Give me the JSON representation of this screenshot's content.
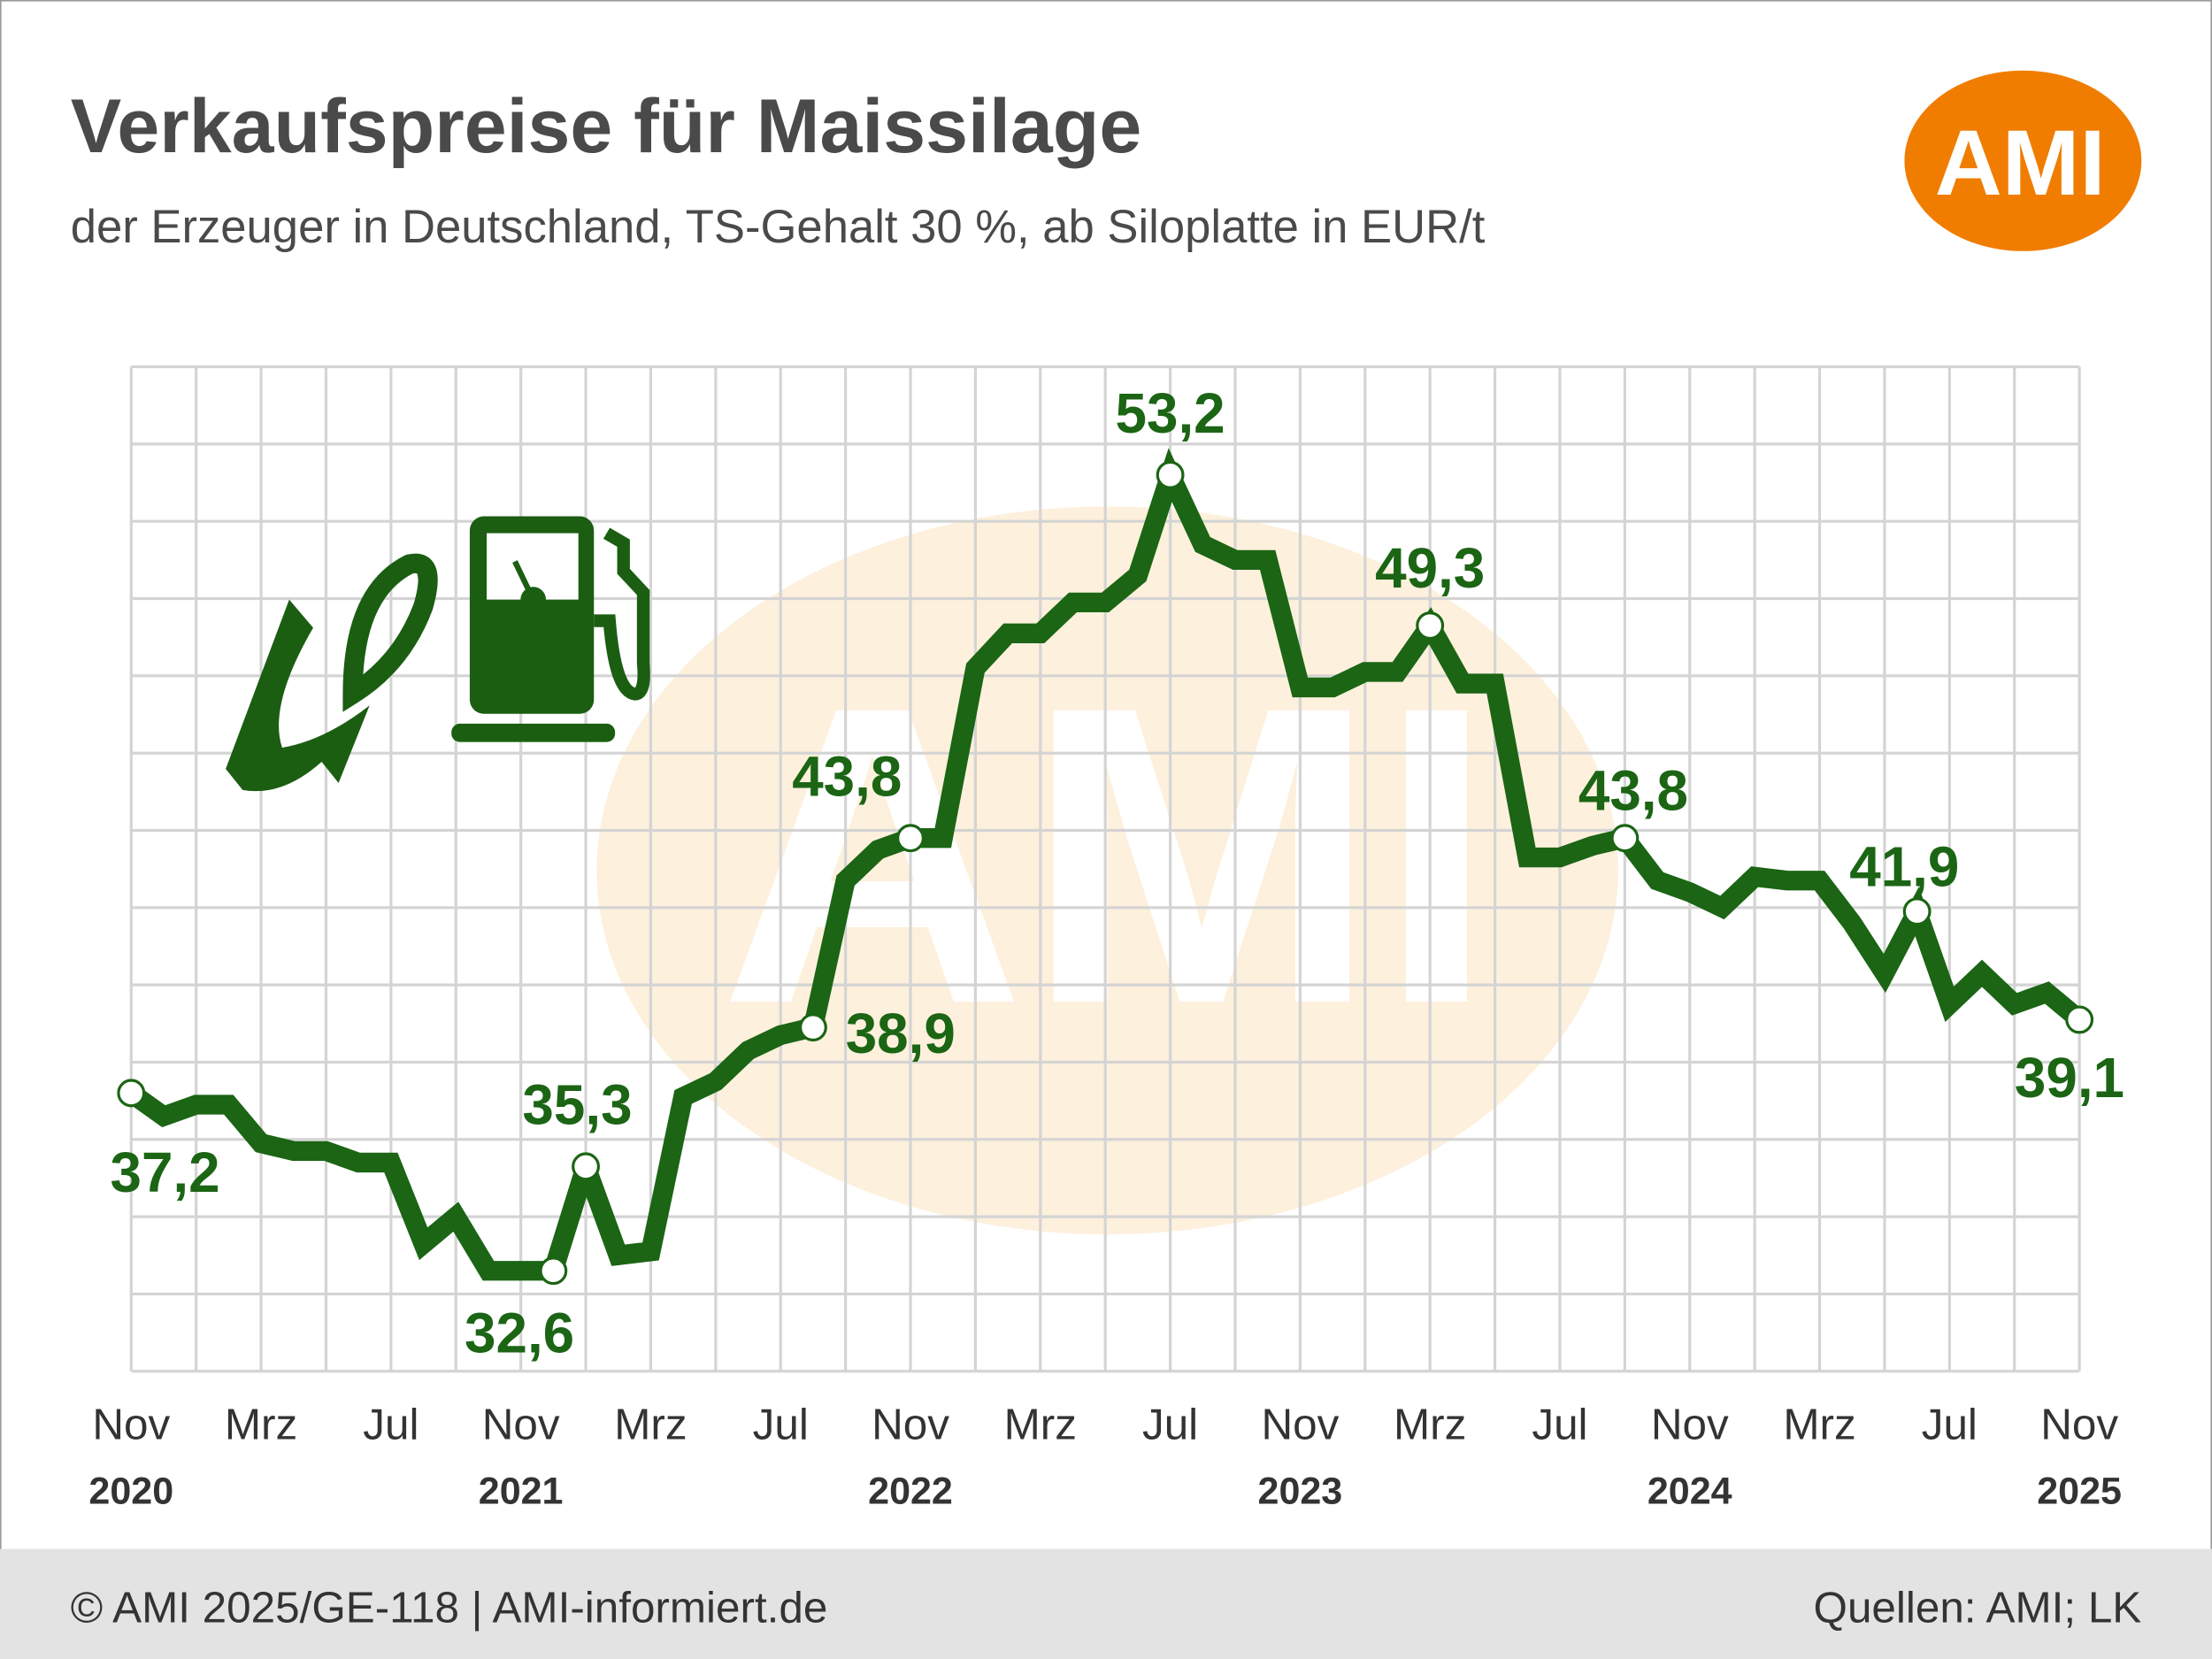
{
  "chart_data": {
    "type": "line",
    "title": "Verkaufspreise für Maissilage",
    "subtitle": "der Erzeuger in Deutschland, TS-Gehalt 30 %, ab Siloplatte in EUR/t",
    "logo": "AMI",
    "categories": [
      "Nov",
      null,
      null,
      null,
      "Mrz",
      null,
      null,
      null,
      "Jul",
      null,
      null,
      null,
      "Nov",
      null,
      null,
      null,
      "Mrz",
      null,
      null,
      null,
      "Jul",
      null,
      null,
      null,
      "Nov",
      null,
      null,
      null,
      "Mrz",
      null,
      null,
      null,
      "Jul",
      null,
      null,
      null,
      "Nov",
      null,
      null,
      null,
      "Mrz",
      null,
      null,
      null,
      "Jul",
      null,
      null,
      null,
      "Nov",
      null,
      null,
      null,
      "Mrz",
      null,
      null,
      null,
      "Jul",
      null,
      null,
      null,
      "Nov"
    ],
    "year_labels": [
      "2020",
      "2021",
      "2022",
      "2023",
      "2024",
      "2025"
    ],
    "series": [
      {
        "name": "Maissilage",
        "color": "#1b6514",
        "values": [
          37.2,
          36.6,
          36.9,
          36.9,
          35.9,
          35.7,
          35.7,
          35.4,
          35.4,
          33.3,
          34.0,
          32.6,
          32.6,
          32.6,
          35.3,
          33.0,
          33.1,
          37.1,
          37.5,
          38.3,
          38.7,
          38.9,
          42.7,
          43.5,
          43.8,
          43.8,
          48.2,
          49.1,
          49.1,
          49.9,
          49.9,
          50.6,
          53.2,
          51.4,
          51.0,
          51.0,
          47.7,
          47.7,
          48.1,
          48.1,
          49.3,
          47.8,
          47.8,
          43.3,
          43.3,
          43.6,
          43.8,
          42.7,
          42.4,
          42.0,
          42.8,
          42.7,
          42.7,
          41.6,
          40.3,
          41.9,
          39.5,
          40.3,
          39.5,
          39.8,
          39.1
        ],
        "value_labels": [
          "37,2",
          null,
          null,
          null,
          null,
          null,
          null,
          null,
          null,
          null,
          null,
          null,
          null,
          "32,6",
          "35,3",
          null,
          null,
          null,
          null,
          null,
          null,
          "38,9",
          null,
          null,
          "43,8",
          null,
          null,
          null,
          null,
          null,
          null,
          null,
          "53,2",
          null,
          null,
          null,
          null,
          null,
          null,
          null,
          "49,3",
          null,
          null,
          null,
          null,
          null,
          "43,8",
          null,
          null,
          null,
          null,
          null,
          null,
          null,
          null,
          "41,9",
          null,
          null,
          null,
          null,
          "39,1"
        ]
      }
    ],
    "ylim": [
      30,
      56
    ],
    "yticks": [
      30,
      32,
      34,
      36,
      38,
      40,
      42,
      44,
      46,
      48,
      50,
      52,
      54,
      56
    ],
    "grid": true,
    "footer_left": "© AMI 2025/GE-118 | AMI-informiert.de",
    "footer_right": "Quellen: AMI; LK"
  }
}
